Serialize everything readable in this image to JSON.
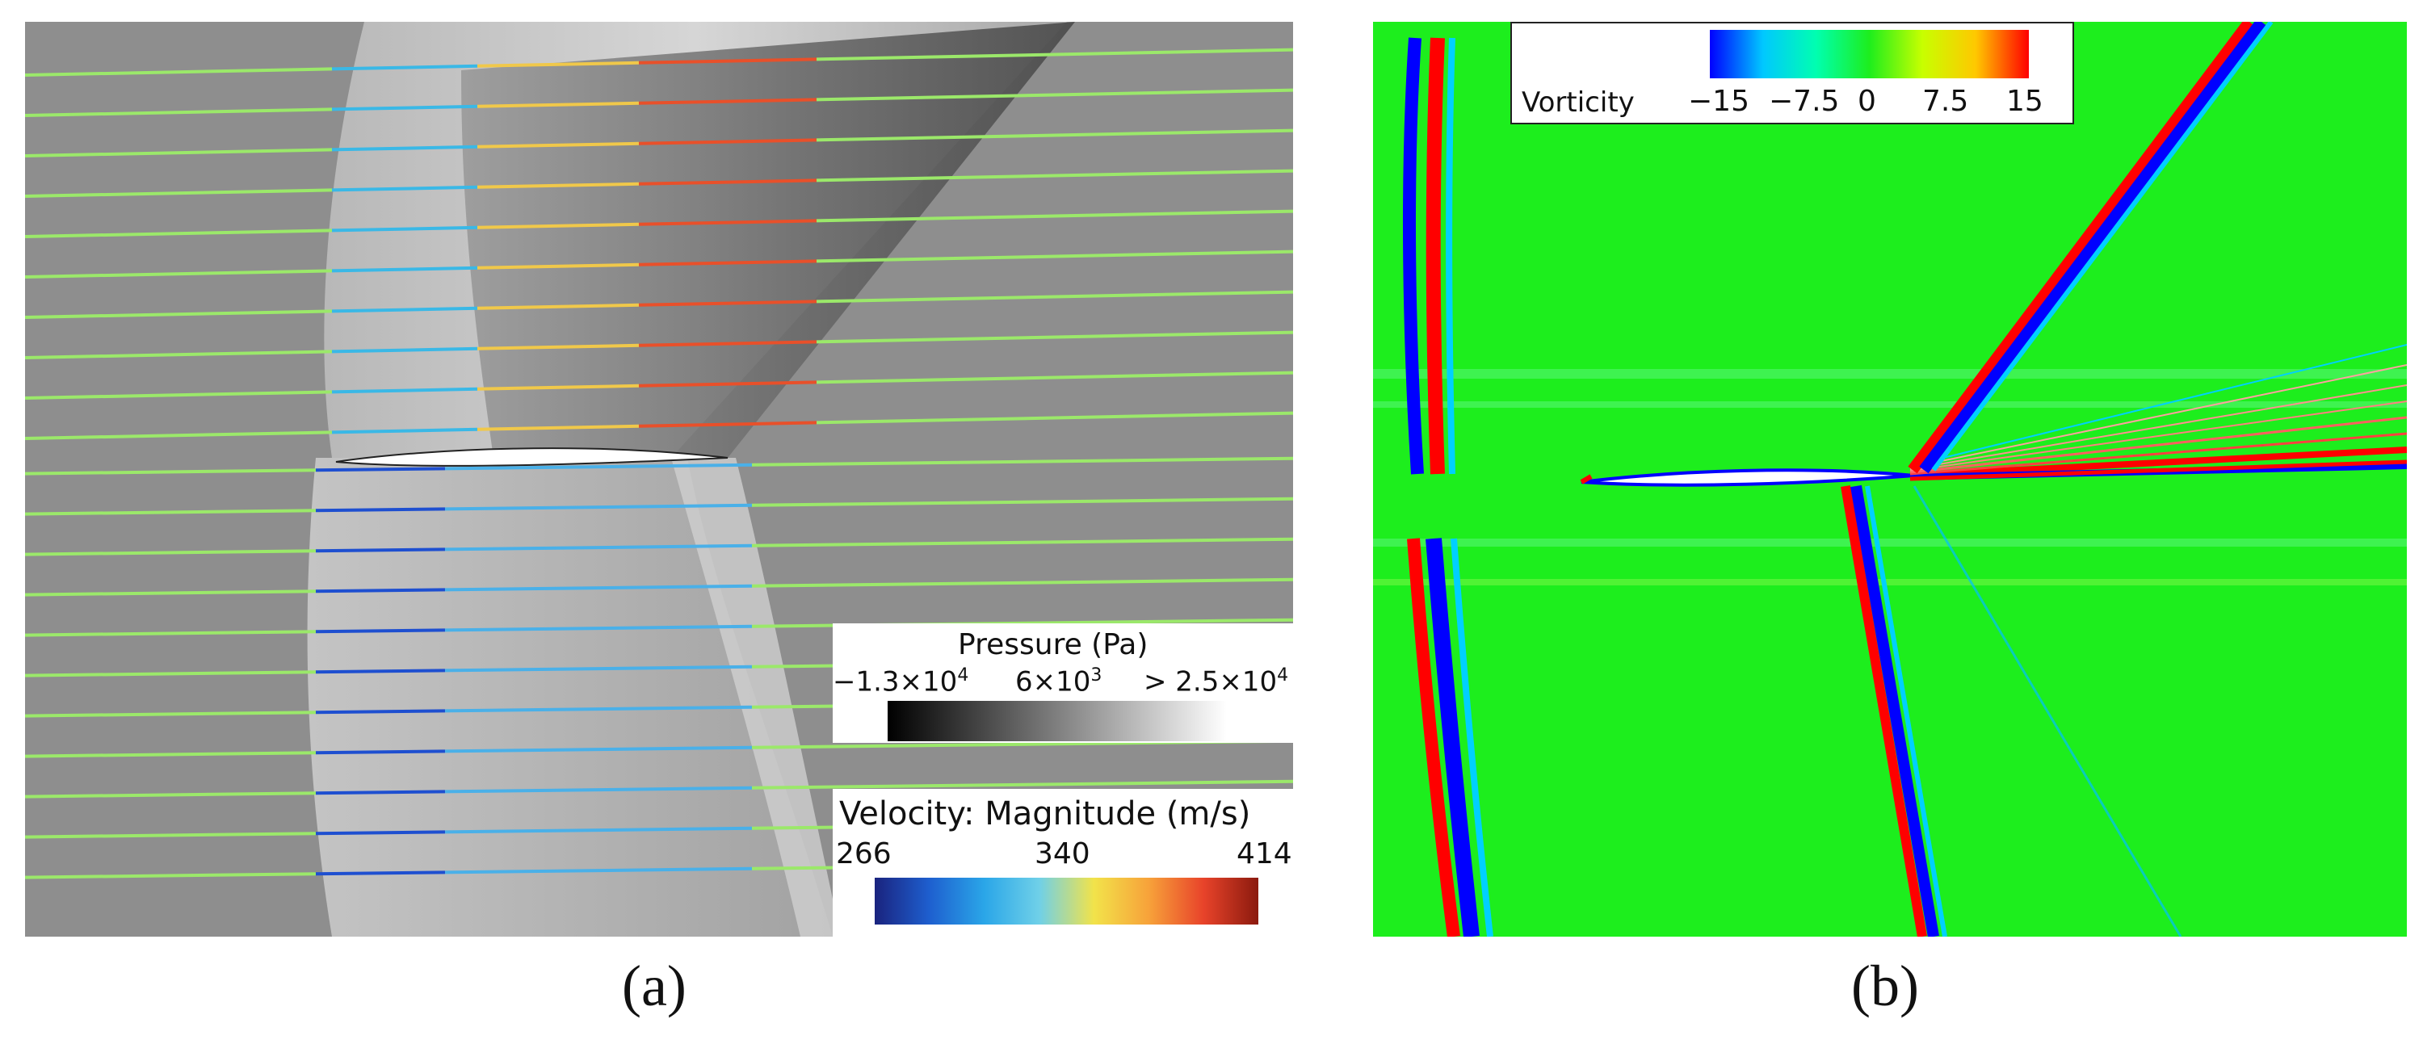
{
  "panel_a": {
    "caption": "(a)",
    "pressure_legend": {
      "title": "Pressure (Pa)",
      "tick_min": "−1.3×10",
      "tick_min_exp": "4",
      "tick_mid": "6×10",
      "tick_mid_exp": "3",
      "tick_max": "> 2.5×10",
      "tick_max_exp": "4",
      "colors": [
        "#000000",
        "#ffffff"
      ]
    },
    "velocity_legend": {
      "title": "Velocity: Magnitude (m/s)",
      "tick_min": "266",
      "tick_mid": "340",
      "tick_max": "414",
      "colors": [
        "#1a237e",
        "#1e5fcf",
        "#2aa6e8",
        "#6fd0e8",
        "#f2e34a",
        "#f7a23a",
        "#e8432a",
        "#8b1a0e"
      ]
    }
  },
  "panel_b": {
    "caption": "(b)",
    "vorticity_legend": {
      "label": "Vorticity",
      "ticks": [
        "−15",
        "−7.5",
        "0",
        "7.5",
        "15"
      ],
      "colors": [
        "#0000ff",
        "#00c8ff",
        "#00ffb0",
        "#1dee1d",
        "#c8ff00",
        "#ffc800",
        "#ff0000"
      ]
    }
  }
}
